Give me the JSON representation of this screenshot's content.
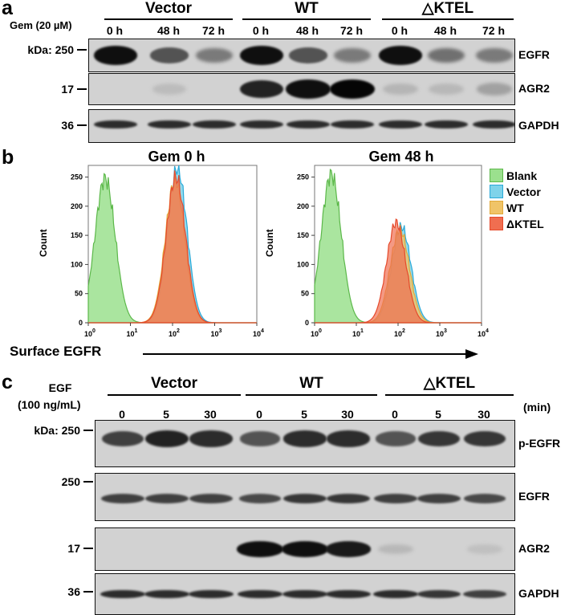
{
  "panels": {
    "a": "a",
    "b": "b",
    "c": "c"
  },
  "panel_a": {
    "treatment_label": "Gem (20 µM)",
    "kda_label": "kDa: 250",
    "groups": [
      "Vector",
      "WT",
      "△KTEL"
    ],
    "lanes": [
      "0  h",
      "48 h",
      "72 h",
      "0  h",
      "48 h",
      "72 h",
      "0  h",
      "48 h",
      "72 h"
    ],
    "blots": [
      {
        "protein": "EGFR",
        "marker": "kDa: 250",
        "intensities": [
          0.95,
          0.6,
          0.4,
          0.95,
          0.6,
          0.4,
          0.95,
          0.45,
          0.4
        ]
      },
      {
        "protein": "AGR2",
        "marker": "17",
        "intensities": [
          0.0,
          0.06,
          0.0,
          0.85,
          0.95,
          1.0,
          0.1,
          0.08,
          0.2
        ]
      },
      {
        "protein": "GAPDH",
        "marker": "36",
        "intensities": [
          0.8,
          0.8,
          0.8,
          0.8,
          0.8,
          0.8,
          0.8,
          0.8,
          0.8
        ]
      }
    ]
  },
  "panel_b": {
    "plots": [
      {
        "title": "Gem 0 h"
      },
      {
        "title": "Gem 48 h"
      }
    ],
    "ylabel": "Count",
    "xlabel": "Surface EGFR",
    "yticks": [
      "0",
      "50",
      "100",
      "150",
      "200",
      "250"
    ],
    "xtick_exponents": [
      "0",
      "1",
      "2",
      "3",
      "4"
    ],
    "legend": [
      {
        "name": "Blank",
        "color": "#9be08e"
      },
      {
        "name": "Vector",
        "color": "#7fd3ea"
      },
      {
        "name": "WT",
        "color": "#f0c468"
      },
      {
        "name": "ΔKTEL",
        "color": "#f06e50"
      }
    ]
  },
  "panel_c": {
    "treatment_label_line1": "EGF",
    "treatment_label_line2": "(100 ng/mL)",
    "unit": "(min)",
    "groups": [
      "Vector",
      "WT",
      "△KTEL"
    ],
    "lanes": [
      "0",
      "5",
      "30",
      "0",
      "5",
      "30",
      "0",
      "5",
      "30"
    ],
    "blots": [
      {
        "protein": "p-EGFR",
        "marker": "kDa: 250",
        "intensities": [
          0.7,
          0.85,
          0.8,
          0.6,
          0.8,
          0.8,
          0.6,
          0.75,
          0.75
        ]
      },
      {
        "protein": "EGFR",
        "marker": "250",
        "intensities": [
          0.7,
          0.7,
          0.7,
          0.65,
          0.75,
          0.75,
          0.7,
          0.7,
          0.65
        ]
      },
      {
        "protein": "AGR2",
        "marker": "17",
        "intensities": [
          0.0,
          0.0,
          0.0,
          0.95,
          0.95,
          0.9,
          0.08,
          0.0,
          0.04
        ]
      },
      {
        "protein": "GAPDH",
        "marker": "36",
        "intensities": [
          0.8,
          0.8,
          0.8,
          0.8,
          0.8,
          0.8,
          0.8,
          0.75,
          0.7
        ]
      }
    ]
  },
  "chart_data": [
    {
      "type": "area",
      "title": "Gem 0 h",
      "xlabel": "Surface EGFR",
      "ylabel": "Count",
      "xscale": "log",
      "xlim": [
        1,
        10000
      ],
      "ylim": [
        0,
        270
      ],
      "series": [
        {
          "name": "Blank",
          "mode_x": 2.5,
          "peak": 248
        },
        {
          "name": "Vector",
          "mode_x": 130,
          "peak": 265
        },
        {
          "name": "WT",
          "mode_x": 115,
          "peak": 245
        },
        {
          "name": "ΔKTEL",
          "mode_x": 120,
          "peak": 250
        }
      ]
    },
    {
      "type": "area",
      "title": "Gem 48 h",
      "xlabel": "Surface EGFR",
      "ylabel": "Count",
      "xscale": "log",
      "xlim": [
        1,
        10000
      ],
      "ylim": [
        0,
        270
      ],
      "series": [
        {
          "name": "Blank",
          "mode_x": 2.5,
          "peak": 255
        },
        {
          "name": "Vector",
          "mode_x": 120,
          "peak": 165
        },
        {
          "name": "WT",
          "mode_x": 110,
          "peak": 160
        },
        {
          "name": "ΔKTEL",
          "mode_x": 90,
          "peak": 172
        }
      ]
    }
  ]
}
